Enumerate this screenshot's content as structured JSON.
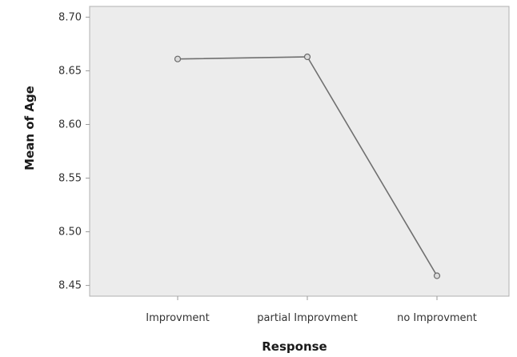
{
  "chart_data": {
    "type": "line",
    "title": "",
    "xlabel": "Response",
    "ylabel": "Mean of Age",
    "categories": [
      "Improvment",
      "partial Improvment",
      "no Improvment"
    ],
    "series": [
      {
        "values": [
          8.661,
          8.663,
          8.459
        ]
      }
    ],
    "ylim": [
      8.44,
      8.71
    ],
    "yticks": [
      8.45,
      8.5,
      8.55,
      8.6,
      8.65,
      8.7
    ],
    "ytick_labels": [
      "8.45",
      "8.50",
      "8.55",
      "8.60",
      "8.65",
      "8.70"
    ],
    "grid": false,
    "legend": "none",
    "colors": {
      "plot_background": "#ececec",
      "line": "#707070",
      "marker_fill": "#dcdcdc",
      "marker_stroke": "#6a6a6a",
      "axis": "#9a9a9a"
    }
  }
}
